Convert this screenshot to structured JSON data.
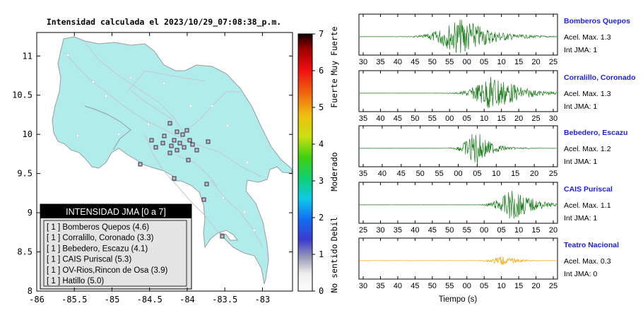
{
  "map": {
    "title": "Intensidad calculada el 2023/10/29_07:08:38_p.m.",
    "x_ticks": [
      "-86",
      "-85.5",
      "-85",
      "-84.5",
      "-84",
      "-83.5",
      "-83"
    ],
    "y_ticks": [
      "8",
      "8.5",
      "9",
      "9.5",
      "10",
      "10.5",
      "11"
    ],
    "xlim": [
      -86,
      -82.6
    ],
    "ylim": [
      8,
      11.3
    ],
    "land_color": "#b0ecec",
    "station_marker_color": "#9a7aa0",
    "legend": {
      "title": "INTENSIDAD JMA [0 a 7]",
      "entries": [
        "[ 1 ]  Bomberos Quepos (4.6)",
        "[ 1 ]  Corralillo, Coronado (3.3)",
        "[ 1 ]  Bebedero, Escazu (4.1)",
        "[ 1 ]  CAIS Puriscal (5.3)",
        "[ 1 ]  OV-Rios,Rincon de Osa (3.9)",
        "[ 1 ]  Hatillo (5.0)"
      ]
    }
  },
  "colorbar": {
    "ticks": [
      "0",
      "1",
      "2",
      "3",
      "4",
      "5",
      "6",
      "7"
    ],
    "labels": [
      "No sentido",
      "Debil",
      "Moderado",
      "Fuerte",
      "Muy Fuerte"
    ]
  },
  "chart_data": {
    "type": "line",
    "xlabel": "Tiempo (s)",
    "series": [
      {
        "name": "Bomberos Quepos",
        "max_label": "Acel. Max. 1.3",
        "int_label": "Int JMA: 1",
        "color": "#157a15",
        "ticks": [
          "30",
          "35",
          "40",
          "45",
          "50",
          "55",
          "00",
          "05",
          "10",
          "15",
          "20",
          "25"
        ],
        "tick_start": 30,
        "event_center": 63,
        "event_width": 6,
        "amplitude": 1.3,
        "precursor_amp": 0.0
      },
      {
        "name": "Corralillo, Coronado",
        "max_label": "Acel. Max. 1.3",
        "int_label": "Int JMA: 1",
        "color": "#157a15",
        "ticks": [
          "35",
          "40",
          "45",
          "50",
          "55",
          "00",
          "05",
          "10",
          "15",
          "20",
          "25",
          "30"
        ],
        "tick_start": 35,
        "event_center": 78,
        "event_width": 5,
        "amplitude": 1.3,
        "precursor_amp": 0.0
      },
      {
        "name": "Bebedero, Escazu",
        "max_label": "Acel. Max. 1.2",
        "int_label": "Int JMA: 1",
        "color": "#157a15",
        "ticks": [
          "35",
          "40",
          "45",
          "50",
          "55",
          "00",
          "05",
          "10",
          "15",
          "20",
          "25"
        ],
        "tick_start": 35,
        "event_center": 72,
        "event_width": 3,
        "amplitude": 1.2,
        "precursor_amp": 0.0
      },
      {
        "name": "CAIS Puriscal",
        "max_label": "Acel. Max. 1.1",
        "int_label": "Int JMA: 1",
        "color": "#157a15",
        "ticks": [
          "25",
          "30",
          "35",
          "40",
          "45",
          "50",
          "55",
          "00",
          "05",
          "10",
          "15",
          "20"
        ],
        "tick_start": 25,
        "event_center": 74,
        "event_width": 4,
        "amplitude": 1.1,
        "precursor_amp": 0.0
      },
      {
        "name": "Teatro Nacional",
        "max_label": "Acel. Max. 0.3",
        "int_label": "Int JMA: 0",
        "color": "#f0a500",
        "ticks": [
          "30",
          "35",
          "40",
          "45",
          "50",
          "55",
          "00",
          "05",
          "10",
          "15",
          "20",
          "25"
        ],
        "tick_start": 30,
        "event_center": 75,
        "event_width": 3,
        "amplitude": 0.3,
        "precursor_amp": 0.1
      }
    ]
  }
}
